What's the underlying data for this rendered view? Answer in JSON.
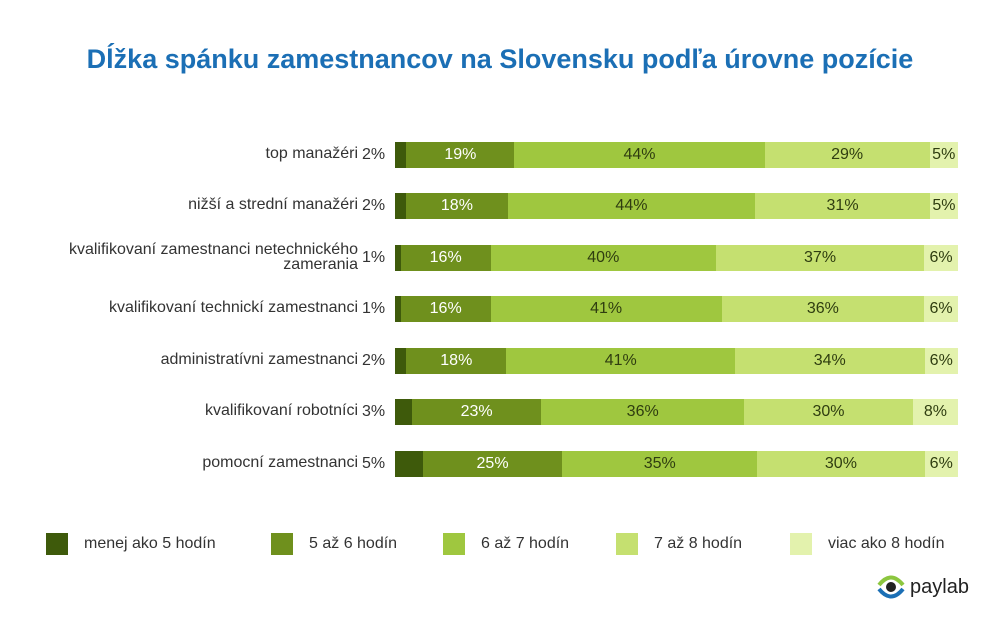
{
  "chart_data": {
    "type": "bar",
    "orientation": "horizontal",
    "stacked": true,
    "title": "Dĺžka spánku zamestnancov na Slovensku podľa úrovne pozície",
    "categories": [
      "top manažéri",
      "nižší a strední manažéri",
      "kvalifikovaní zamestnanci netechnického zamerania",
      "kvalifikovaní technickí zamestnanci",
      "administratívni zamestnanci",
      "kvalifikovaní robotníci",
      "pomocní zamestnanci"
    ],
    "series": [
      {
        "name": "menej ako 5 hodín",
        "color": "#3e5a0b",
        "values": [
          2,
          2,
          1,
          1,
          2,
          3,
          5
        ]
      },
      {
        "name": "5 až 6 hodín",
        "color": "#6f901d",
        "values": [
          19,
          18,
          16,
          16,
          18,
          23,
          25
        ]
      },
      {
        "name": "6 až 7 hodín",
        "color": "#9fc73f",
        "values": [
          44,
          44,
          40,
          41,
          41,
          36,
          35
        ]
      },
      {
        "name": "7 až 8 hodín",
        "color": "#c5e070",
        "values": [
          29,
          31,
          37,
          36,
          34,
          30,
          30
        ]
      },
      {
        "name": "viac ako 8 hodín",
        "color": "#e3f2ad",
        "values": [
          5,
          5,
          6,
          6,
          6,
          8,
          6
        ]
      }
    ],
    "unit": "%",
    "xlim": [
      0,
      100
    ]
  },
  "brand": {
    "logo_text": "paylab"
  }
}
